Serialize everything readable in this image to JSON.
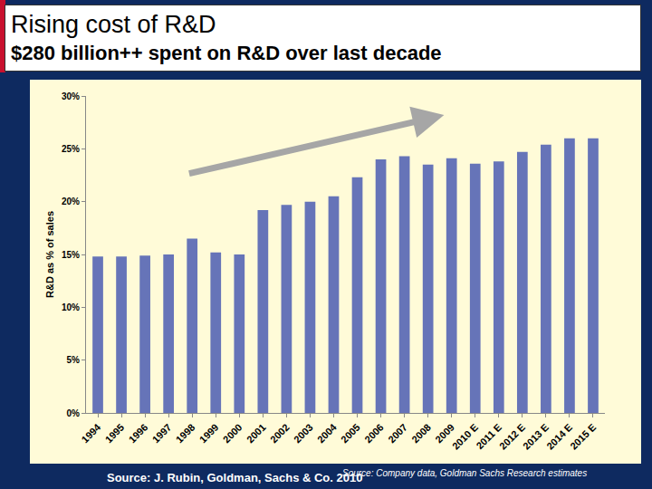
{
  "chart_data": {
    "type": "bar",
    "title": "Rising cost of R&D",
    "subtitle": "$280 billion++ spent on R&D over last decade",
    "y_label": "R&D as % of sales",
    "annotations": [
      "Source: J. Rubin, Goldman, Sachs & Co. 2010",
      "Source: Company data, Goldman Sachs Research estimates"
    ],
    "categories": [
      "1994",
      "1995",
      "1996",
      "1997",
      "1998",
      "1999",
      "2000",
      "2001",
      "2002",
      "2003",
      "2004",
      "2005",
      "2006",
      "2007",
      "2008",
      "2009",
      "2010 E",
      "2011 E",
      "2012 E",
      "2013 E",
      "2014 E",
      "2015 E"
    ],
    "values": [
      14.8,
      14.8,
      14.9,
      15.0,
      16.5,
      15.2,
      15.0,
      19.2,
      19.7,
      20.0,
      20.5,
      22.3,
      24.0,
      24.3,
      23.5,
      24.1,
      23.6,
      23.8,
      24.7,
      25.4,
      26.0,
      26.0
    ],
    "color": "#6674b8",
    "ylim": [
      0,
      30
    ],
    "yticks": [
      {
        "value": 0,
        "label": "0%"
      },
      {
        "value": 5,
        "label": "5%"
      },
      {
        "value": 10,
        "label": "10%"
      },
      {
        "value": 15,
        "label": "15%"
      },
      {
        "value": 20,
        "label": "20%"
      },
      {
        "value": 25,
        "label": "25%"
      },
      {
        "value": 30,
        "label": "30%"
      }
    ],
    "grid": false
  }
}
